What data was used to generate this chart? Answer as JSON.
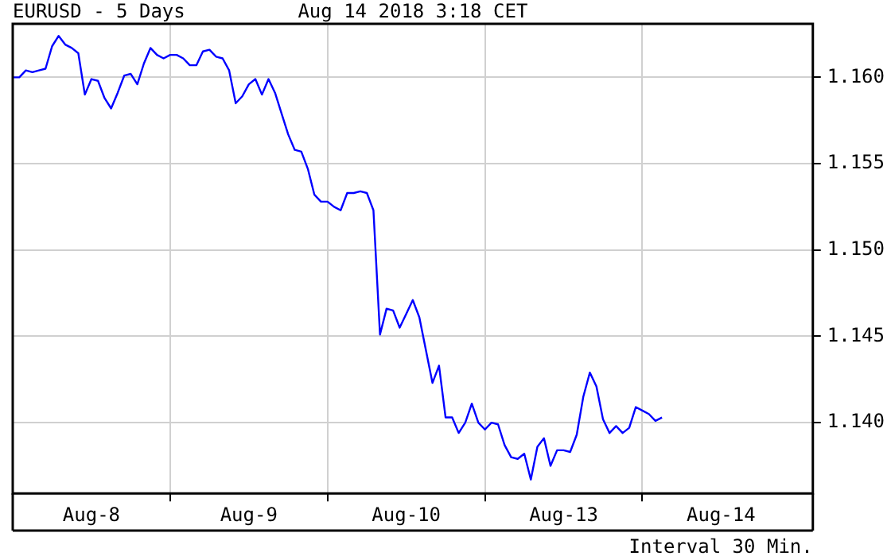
{
  "chart_data": {
    "type": "line",
    "title": "EURUSD - 5 Days",
    "subtitle": "Aug 14 2018 3:18 CET",
    "annotations": [
      "Interval 30 Min."
    ],
    "categories": [
      null,
      null,
      null,
      null,
      null,
      null,
      null,
      null,
      null,
      null,
      null,
      null,
      "Aug-8",
      null,
      null,
      null,
      null,
      null,
      null,
      null,
      null,
      null,
      null,
      null,
      null,
      null,
      null,
      null,
      null,
      null,
      null,
      null,
      null,
      null,
      null,
      null,
      "Aug-9",
      null,
      null,
      null,
      null,
      null,
      null,
      null,
      null,
      null,
      null,
      null,
      null,
      null,
      null,
      null,
      null,
      null,
      null,
      null,
      null,
      null,
      null,
      null,
      "Aug-10",
      null,
      null,
      null,
      null,
      null,
      null,
      null,
      null,
      null,
      null,
      null,
      null,
      null,
      null,
      null,
      null,
      null,
      null,
      null,
      null,
      null,
      null,
      null,
      "Aug-13",
      null,
      null,
      null,
      null,
      null,
      null,
      null,
      null,
      null,
      null,
      null,
      null,
      null,
      null,
      null,
      null,
      null,
      null,
      null,
      null,
      null,
      null,
      null,
      "Aug-14",
      null,
      null,
      null,
      null,
      null,
      null,
      null,
      null,
      null,
      null,
      null,
      null,
      null,
      null
    ],
    "series": [
      {
        "color": "#0000ff",
        "values": [
          1.16,
          1.16,
          1.1604,
          1.1603,
          1.1604,
          1.1605,
          1.1618,
          1.1624,
          1.1619,
          1.1617,
          1.1614,
          1.159,
          1.1599,
          1.1598,
          1.1588,
          1.1582,
          1.1591,
          1.1601,
          1.1602,
          1.1596,
          1.1608,
          1.1617,
          1.1613,
          1.1611,
          1.1613,
          1.1613,
          1.1611,
          1.1607,
          1.1607,
          1.1615,
          1.1616,
          1.1612,
          1.1611,
          1.1604,
          1.1585,
          1.1589,
          1.1596,
          1.1599,
          1.159,
          1.1599,
          1.1591,
          1.1579,
          1.1567,
          1.1558,
          1.1557,
          1.1547,
          1.1532,
          1.1528,
          1.1528,
          1.1525,
          1.1523,
          1.1533,
          1.1533,
          1.1534,
          1.1533,
          1.1523,
          1.1451,
          1.1466,
          1.1465,
          1.1455,
          1.1463,
          1.1471,
          1.1461,
          1.1442,
          1.1423,
          1.1433,
          1.1403,
          1.1403,
          1.1394,
          1.14,
          1.1411,
          1.14,
          1.1396,
          1.14,
          1.1399,
          1.1387,
          1.138,
          1.1379,
          1.1382,
          1.1367,
          1.1386,
          1.1391,
          1.1375,
          1.1384,
          1.1384,
          1.1383,
          1.1393,
          1.1415,
          1.1429,
          1.1421,
          1.1402,
          1.1394,
          1.1398,
          1.1394,
          1.1397,
          1.1409,
          1.1407,
          1.1405,
          1.1401,
          1.1403,
          null,
          null,
          null,
          null,
          null,
          null,
          null,
          null,
          null,
          null,
          null,
          null,
          null,
          null,
          null,
          null,
          null,
          null,
          null,
          null,
          null,
          null,
          null
        ]
      }
    ],
    "ylim": [
      1.1359,
      1.1631
    ],
    "yticks": [
      {
        "value": 1.14,
        "label": "1.140"
      },
      {
        "value": 1.145,
        "label": "1.145"
      },
      {
        "value": 1.15,
        "label": "1.150"
      },
      {
        "value": 1.155,
        "label": "1.155"
      },
      {
        "value": 1.16,
        "label": "1.160"
      }
    ],
    "grid": true,
    "marker": "none"
  }
}
